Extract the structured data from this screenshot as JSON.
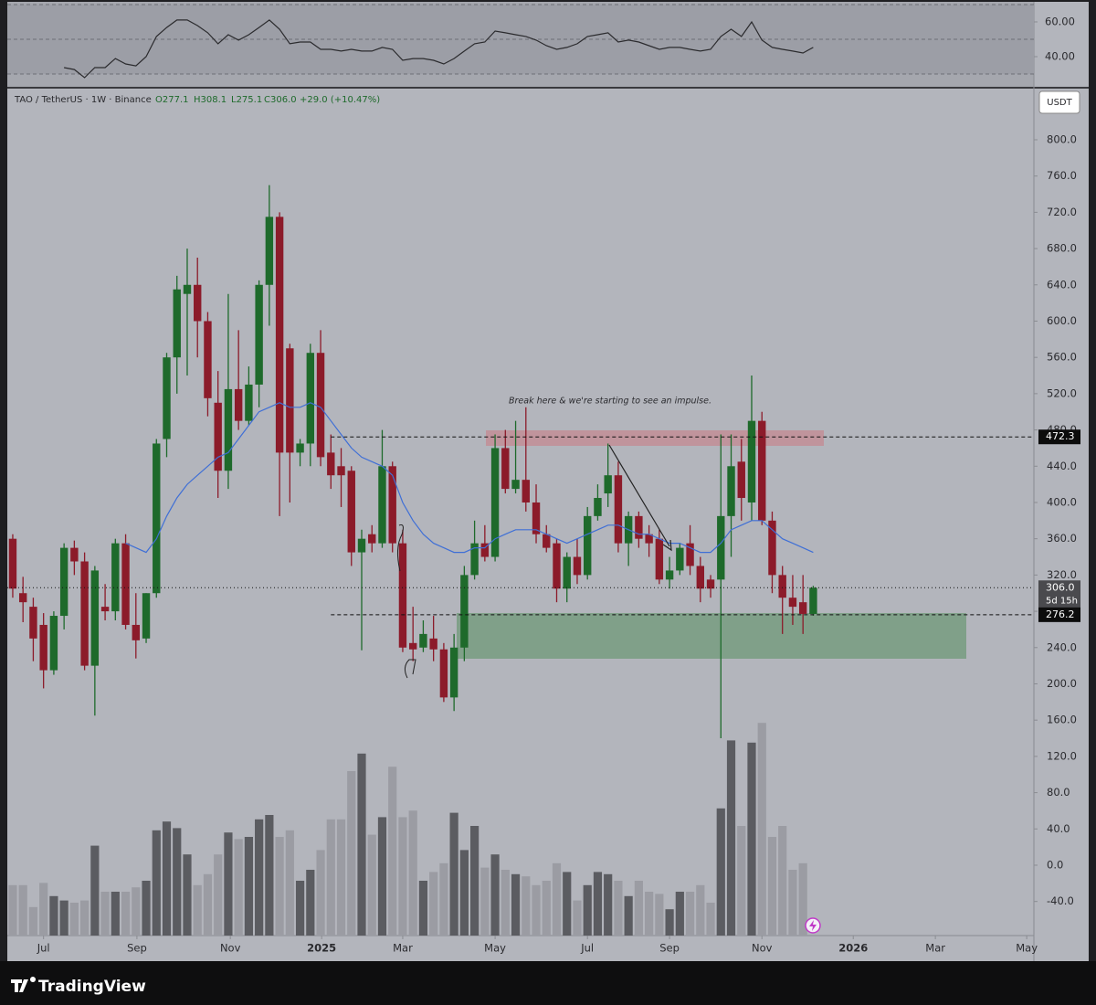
{
  "header": {
    "symbol": "TAO / TetherUS · 1W · Binance",
    "ohlc": [
      "O277.1",
      "H308.1",
      "L275.1",
      "C306.0"
    ],
    "change": "+29.0 (+10.47%)",
    "currency": "USDT",
    "annotation": "Break here & we're starting to see an impulse."
  },
  "footer": {
    "brand": "TradingView"
  },
  "chart_data": [
    {
      "type": "candlestick",
      "up_color": "#1e6a2b",
      "down_color": "#8c1b2a",
      "open": [
        360,
        300,
        285,
        265,
        215,
        275,
        350,
        335,
        220,
        285,
        280,
        355,
        265,
        250,
        300,
        470,
        560,
        630,
        640,
        600,
        510,
        435,
        525,
        490,
        530,
        640,
        715,
        570,
        455,
        465,
        565,
        455,
        440,
        435,
        345,
        365,
        355,
        440,
        355,
        245,
        240,
        250,
        238,
        185,
        240,
        320,
        355,
        340,
        460,
        415,
        425,
        400,
        365,
        355,
        305,
        340,
        320,
        385,
        410,
        430,
        355,
        385,
        365,
        360,
        315,
        325,
        355,
        330,
        315,
        315,
        385,
        445,
        400,
        490,
        380,
        320,
        295,
        290,
        277.1
      ],
      "high": [
        365,
        318,
        295,
        278,
        280,
        355,
        358,
        345,
        330,
        310,
        360,
        365,
        300,
        300,
        470,
        565,
        650,
        680,
        670,
        610,
        545,
        630,
        590,
        550,
        645,
        750,
        720,
        575,
        470,
        575,
        590,
        475,
        460,
        440,
        370,
        375,
        480,
        445,
        370,
        285,
        270,
        275,
        245,
        255,
        330,
        380,
        375,
        475,
        480,
        490,
        505,
        420,
        375,
        360,
        345,
        360,
        395,
        420,
        465,
        445,
        390,
        390,
        375,
        370,
        340,
        355,
        375,
        340,
        320,
        475,
        475,
        470,
        540,
        500,
        390,
        330,
        320,
        320,
        308.1
      ],
      "low": [
        295,
        268,
        225,
        195,
        210,
        260,
        320,
        215,
        165,
        270,
        270,
        260,
        228,
        245,
        295,
        450,
        520,
        540,
        560,
        495,
        405,
        415,
        480,
        485,
        505,
        595,
        385,
        400,
        440,
        440,
        440,
        415,
        395,
        330,
        237,
        345,
        350,
        345,
        235,
        225,
        235,
        225,
        180,
        170,
        225,
        315,
        335,
        335,
        410,
        410,
        390,
        355,
        345,
        290,
        290,
        310,
        315,
        380,
        395,
        345,
        330,
        350,
        340,
        310,
        305,
        320,
        320,
        290,
        295,
        140,
        340,
        380,
        380,
        375,
        300,
        255,
        265,
        255,
        275.1
      ],
      "close": [
        305,
        290,
        250,
        215,
        275,
        350,
        335,
        220,
        325,
        280,
        355,
        265,
        248,
        300,
        465,
        560,
        635,
        640,
        600,
        515,
        435,
        525,
        490,
        530,
        640,
        715,
        455,
        455,
        465,
        565,
        450,
        430,
        430,
        345,
        360,
        355,
        440,
        355,
        240,
        238,
        255,
        238,
        185,
        240,
        320,
        355,
        340,
        460,
        415,
        425,
        400,
        365,
        350,
        305,
        340,
        320,
        385,
        405,
        430,
        355,
        385,
        360,
        355,
        315,
        325,
        350,
        330,
        305,
        305,
        385,
        440,
        405,
        490,
        380,
        320,
        295,
        285,
        277.1,
        306.0
      ],
      "series": [
        {
          "color": "#3f6fd6",
          "values": [
            null,
            null,
            null,
            null,
            null,
            null,
            null,
            null,
            null,
            null,
            null,
            355,
            350,
            345,
            360,
            385,
            405,
            420,
            430,
            440,
            450,
            455,
            470,
            485,
            500,
            505,
            510,
            505,
            505,
            510,
            505,
            490,
            475,
            460,
            450,
            445,
            440,
            430,
            400,
            380,
            365,
            355,
            350,
            345,
            345,
            350,
            350,
            360,
            365,
            370,
            370,
            370,
            365,
            360,
            355,
            360,
            365,
            370,
            375,
            375,
            370,
            365,
            365,
            360,
            355,
            355,
            350,
            345,
            345,
            355,
            370,
            375,
            380,
            380,
            370,
            360,
            355,
            350,
            345
          ]
        }
      ],
      "volume": [
        23,
        23,
        13,
        24,
        18,
        16,
        15,
        16,
        41,
        20,
        20,
        20,
        22,
        25,
        48,
        52,
        49,
        37,
        23,
        28,
        37,
        47,
        44,
        45,
        53,
        55,
        45,
        48,
        25,
        30,
        39,
        53,
        53,
        75,
        83,
        46,
        54,
        77,
        54,
        57,
        25,
        29,
        33,
        56,
        39,
        50,
        31,
        37,
        30,
        28,
        27,
        23,
        25,
        33,
        29,
        16,
        23,
        29,
        28,
        25,
        18,
        25,
        20,
        19,
        12,
        20,
        20,
        23,
        15,
        58,
        89,
        50,
        88,
        97,
        45,
        50,
        30,
        33,
        null
      ],
      "volume_ylim": [
        0,
        100
      ],
      "volume_colors": {
        "up": "#5b5c61",
        "down": "#9b9ca3"
      },
      "ylim": [
        -77.6,
        856.4
      ],
      "yticks": [
        {
          "value": 800,
          "label": "800.0"
        },
        {
          "value": 760,
          "label": "760.0"
        },
        {
          "value": 720,
          "label": "720.0"
        },
        {
          "value": 680,
          "label": "680.0"
        },
        {
          "value": 640,
          "label": "640.0"
        },
        {
          "value": 600,
          "label": "600.0"
        },
        {
          "value": 560,
          "label": "560.0"
        },
        {
          "value": 520,
          "label": "520.0"
        },
        {
          "value": 480,
          "label": "480.0"
        },
        {
          "value": 440,
          "label": "440.0"
        },
        {
          "value": 400,
          "label": "400.0"
        },
        {
          "value": 360,
          "label": "360.0"
        },
        {
          "value": 320,
          "label": "320.0"
        },
        {
          "value": 280,
          "label": "280.0"
        },
        {
          "value": 240,
          "label": "240.0"
        },
        {
          "value": 200,
          "label": "200.0"
        },
        {
          "value": 160,
          "label": "160.0"
        },
        {
          "value": 120,
          "label": "120.0"
        },
        {
          "value": 80,
          "label": "80.0"
        },
        {
          "value": 40,
          "label": "40.0"
        },
        {
          "value": 0,
          "label": "0.0"
        },
        {
          "value": -40,
          "label": "-40.0"
        }
      ],
      "xlim": [
        -0.53,
        99.5
      ],
      "xticks": [
        {
          "value": 3.0,
          "label": "Jul"
        },
        {
          "value": 12.1,
          "label": "Sep"
        },
        {
          "value": 21.2,
          "label": "Nov"
        },
        {
          "value": 30.1,
          "label": "2025"
        },
        {
          "value": 38.0,
          "label": "Mar"
        },
        {
          "value": 47.0,
          "label": "May"
        },
        {
          "value": 56.0,
          "label": "Jul"
        },
        {
          "value": 64.0,
          "label": "Sep"
        },
        {
          "value": 73.0,
          "label": "Nov"
        },
        {
          "value": 81.9,
          "label": "2026"
        },
        {
          "value": 89.9,
          "label": "Mar"
        },
        {
          "value": 98.8,
          "label": "May"
        }
      ],
      "price_lines": [
        472.3,
        {
          "value": 306.0,
          "label": "306.0",
          "countdown": "5d 15h"
        },
        276.2
      ],
      "grid": false
    },
    {
      "type": "line",
      "series": [
        {
          "color": "#2b2b2e",
          "values": [
            null,
            null,
            null,
            null,
            null,
            33.7,
            32.6,
            27.9,
            33.7,
            33.7,
            38.9,
            35.8,
            34.7,
            40,
            51.6,
            56.8,
            61.1,
            61.1,
            57.9,
            53.7,
            47.4,
            52.6,
            49.5,
            52.6,
            56.8,
            61.1,
            55.8,
            47.4,
            48.4,
            48.4,
            44.2,
            44.2,
            43.2,
            44.2,
            43.2,
            43.2,
            45.3,
            44.2,
            37.9,
            38.9,
            38.9,
            37.9,
            35.8,
            38.9,
            43.2,
            47.4,
            48.4,
            54.7,
            53.7,
            52.6,
            51.6,
            49.5,
            46.3,
            44.2,
            45.3,
            47.4,
            51.6,
            52.6,
            53.7,
            48.4,
            49.5,
            48.4,
            46.3,
            44.2,
            45.3,
            45.3,
            44.2,
            43.2,
            44.2,
            51.6,
            55.8,
            51.6,
            60,
            49.5,
            45.3,
            44.2,
            43.2,
            42.1,
            45.3
          ]
        }
      ],
      "ylim": [
        23.7,
        70.5
      ],
      "yticks": [
        {
          "value": 60,
          "label": "60.00"
        },
        {
          "value": 40,
          "label": "40.00"
        }
      ],
      "levels": [
        70,
        50,
        30
      ],
      "grid": false
    }
  ]
}
